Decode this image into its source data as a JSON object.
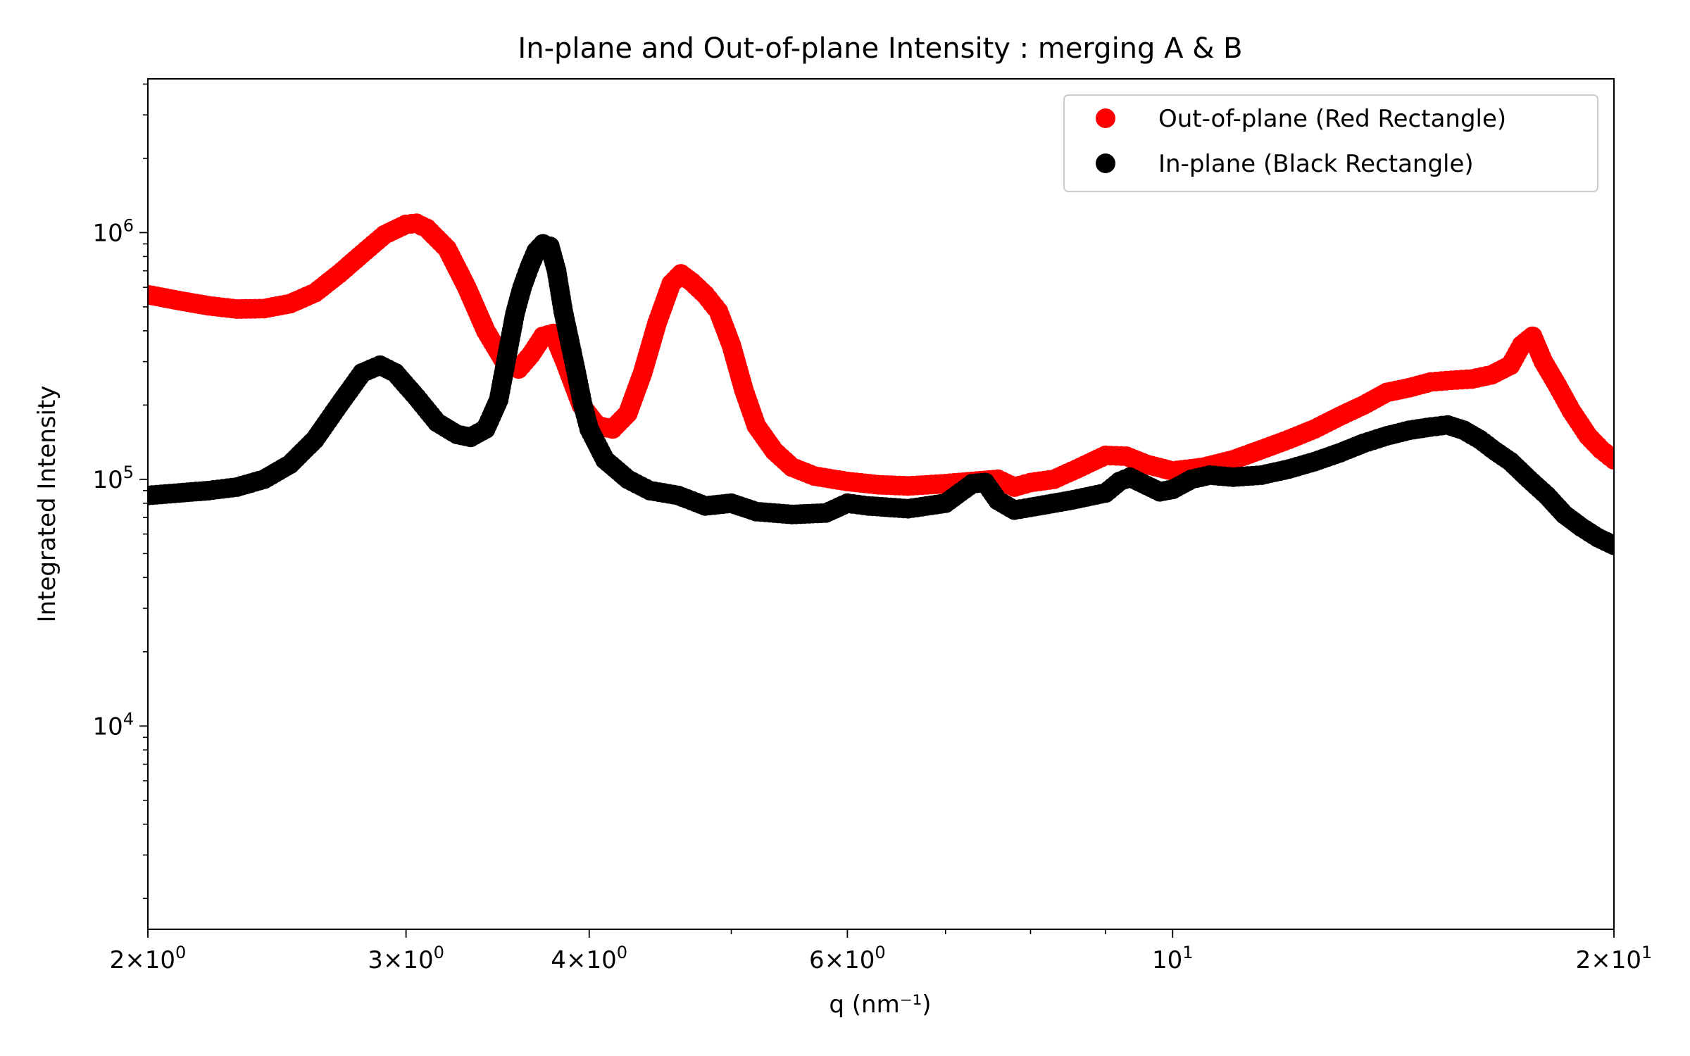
{
  "chart_data": {
    "type": "scatter",
    "title": "In-plane and Out-of-plane Intensity : merging A & B",
    "xlabel": "q (nm⁻¹)",
    "ylabel": "Integrated Intensity",
    "xscale": "log",
    "yscale": "log",
    "xlim": [
      2,
      20
    ],
    "ylim": [
      1500,
      4200000
    ],
    "grid": false,
    "legend_position": "top-right",
    "x_major_ticks": [
      {
        "value": 2,
        "mantissa": "2",
        "exponent": "0"
      },
      {
        "value": 3,
        "mantissa": "3",
        "exponent": "0"
      },
      {
        "value": 4,
        "mantissa": "4",
        "exponent": "0"
      },
      {
        "value": 6,
        "mantissa": "6",
        "exponent": "0"
      },
      {
        "value": 10,
        "mantissa": "",
        "exponent": "1"
      },
      {
        "value": 20,
        "mantissa": "2",
        "exponent": "1"
      }
    ],
    "y_major_ticks": [
      {
        "value": 10000,
        "exponent": "4"
      },
      {
        "value": 100000,
        "exponent": "5"
      },
      {
        "value": 1000000,
        "exponent": "6"
      }
    ],
    "series": [
      {
        "name": "Out-of-plane (Red Rectangle)",
        "color": "#ff0000",
        "points": [
          [
            2.0,
            560000
          ],
          [
            2.1,
            530000
          ],
          [
            2.2,
            505000
          ],
          [
            2.3,
            490000
          ],
          [
            2.4,
            492000
          ],
          [
            2.5,
            515000
          ],
          [
            2.6,
            570000
          ],
          [
            2.7,
            680000
          ],
          [
            2.8,
            820000
          ],
          [
            2.9,
            980000
          ],
          [
            3.0,
            1080000
          ],
          [
            3.05,
            1090000
          ],
          [
            3.1,
            1040000
          ],
          [
            3.2,
            860000
          ],
          [
            3.3,
            600000
          ],
          [
            3.4,
            400000
          ],
          [
            3.5,
            300000
          ],
          [
            3.58,
            280000
          ],
          [
            3.65,
            320000
          ],
          [
            3.72,
            380000
          ],
          [
            3.78,
            390000
          ],
          [
            3.85,
            300000
          ],
          [
            3.95,
            200000
          ],
          [
            4.05,
            165000
          ],
          [
            4.15,
            160000
          ],
          [
            4.25,
            185000
          ],
          [
            4.35,
            270000
          ],
          [
            4.45,
            430000
          ],
          [
            4.55,
            620000
          ],
          [
            4.62,
            680000
          ],
          [
            4.7,
            630000
          ],
          [
            4.8,
            560000
          ],
          [
            4.9,
            480000
          ],
          [
            5.0,
            350000
          ],
          [
            5.1,
            230000
          ],
          [
            5.2,
            165000
          ],
          [
            5.35,
            130000
          ],
          [
            5.5,
            112000
          ],
          [
            5.7,
            103000
          ],
          [
            6.0,
            98000
          ],
          [
            6.3,
            95000
          ],
          [
            6.6,
            94000
          ],
          [
            7.0,
            96000
          ],
          [
            7.3,
            98000
          ],
          [
            7.6,
            100000
          ],
          [
            7.8,
            93000
          ],
          [
            8.0,
            97000
          ],
          [
            8.3,
            100000
          ],
          [
            8.6,
            110000
          ],
          [
            9.0,
            125000
          ],
          [
            9.3,
            124000
          ],
          [
            9.6,
            115000
          ],
          [
            10.0,
            108000
          ],
          [
            10.5,
            112000
          ],
          [
            11.0,
            120000
          ],
          [
            11.5,
            132000
          ],
          [
            12.0,
            145000
          ],
          [
            12.5,
            160000
          ],
          [
            13.0,
            180000
          ],
          [
            13.5,
            200000
          ],
          [
            14.0,
            225000
          ],
          [
            14.5,
            235000
          ],
          [
            15.0,
            248000
          ],
          [
            15.5,
            252000
          ],
          [
            16.0,
            255000
          ],
          [
            16.5,
            265000
          ],
          [
            17.0,
            290000
          ],
          [
            17.3,
            350000
          ],
          [
            17.6,
            380000
          ],
          [
            17.9,
            300000
          ],
          [
            18.3,
            240000
          ],
          [
            18.7,
            190000
          ],
          [
            19.2,
            150000
          ],
          [
            19.6,
            132000
          ],
          [
            20.0,
            120000
          ]
        ]
      },
      {
        "name": "In-plane (Black Rectangle)",
        "color": "#000000",
        "points": [
          [
            2.0,
            86000
          ],
          [
            2.1,
            88000
          ],
          [
            2.2,
            90000
          ],
          [
            2.3,
            93000
          ],
          [
            2.4,
            100000
          ],
          [
            2.5,
            115000
          ],
          [
            2.6,
            145000
          ],
          [
            2.7,
            200000
          ],
          [
            2.8,
            270000
          ],
          [
            2.88,
            290000
          ],
          [
            2.95,
            270000
          ],
          [
            3.05,
            215000
          ],
          [
            3.15,
            170000
          ],
          [
            3.25,
            152000
          ],
          [
            3.32,
            148000
          ],
          [
            3.4,
            160000
          ],
          [
            3.47,
            210000
          ],
          [
            3.52,
            330000
          ],
          [
            3.56,
            470000
          ],
          [
            3.6,
            600000
          ],
          [
            3.64,
            720000
          ],
          [
            3.68,
            840000
          ],
          [
            3.72,
            900000
          ],
          [
            3.76,
            880000
          ],
          [
            3.8,
            700000
          ],
          [
            3.84,
            480000
          ],
          [
            3.88,
            360000
          ],
          [
            3.92,
            270000
          ],
          [
            3.96,
            200000
          ],
          [
            4.0,
            160000
          ],
          [
            4.1,
            120000
          ],
          [
            4.25,
            100000
          ],
          [
            4.4,
            90000
          ],
          [
            4.6,
            86000
          ],
          [
            4.8,
            78000
          ],
          [
            5.0,
            80000
          ],
          [
            5.2,
            74000
          ],
          [
            5.5,
            72000
          ],
          [
            5.8,
            73000
          ],
          [
            6.0,
            80000
          ],
          [
            6.2,
            78000
          ],
          [
            6.6,
            76000
          ],
          [
            7.0,
            80000
          ],
          [
            7.3,
            96000
          ],
          [
            7.45,
            97000
          ],
          [
            7.6,
            82000
          ],
          [
            7.8,
            75000
          ],
          [
            8.0,
            77000
          ],
          [
            8.5,
            82000
          ],
          [
            9.0,
            88000
          ],
          [
            9.2,
            98000
          ],
          [
            9.35,
            102000
          ],
          [
            9.8,
            89000
          ],
          [
            10.0,
            91000
          ],
          [
            10.3,
            100000
          ],
          [
            10.6,
            104000
          ],
          [
            11.0,
            102000
          ],
          [
            11.5,
            104000
          ],
          [
            12.0,
            110000
          ],
          [
            12.5,
            118000
          ],
          [
            13.0,
            128000
          ],
          [
            13.5,
            140000
          ],
          [
            14.0,
            150000
          ],
          [
            14.5,
            158000
          ],
          [
            15.0,
            163000
          ],
          [
            15.4,
            166000
          ],
          [
            15.8,
            158000
          ],
          [
            16.2,
            145000
          ],
          [
            16.6,
            130000
          ],
          [
            17.0,
            118000
          ],
          [
            17.5,
            100000
          ],
          [
            18.0,
            86000
          ],
          [
            18.5,
            72000
          ],
          [
            19.0,
            64000
          ],
          [
            19.5,
            58000
          ],
          [
            20.0,
            54000
          ]
        ]
      }
    ]
  }
}
